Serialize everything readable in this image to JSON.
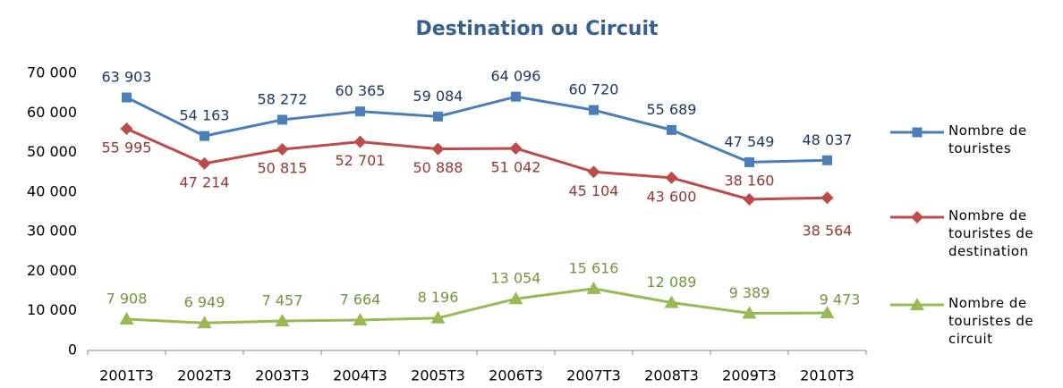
{
  "chart_data": {
    "type": "line",
    "title": "Destination ou Circuit",
    "categories": [
      "2001T3",
      "2002T3",
      "2003T3",
      "2004T3",
      "2005T3",
      "2006T3",
      "2007T3",
      "2008T3",
      "2009T3",
      "2010T3"
    ],
    "ylim": [
      0,
      70000
    ],
    "yticks": [
      0,
      {
        "value": 10000,
        "label": "10 000"
      },
      {
        "value": 20000,
        "label": "20 000"
      },
      {
        "value": 30000,
        "label": "30 000"
      },
      {
        "value": 40000,
        "label": "40 000"
      },
      {
        "value": 50000,
        "label": "50 000"
      },
      {
        "value": 60000,
        "label": "60 000"
      },
      {
        "value": 70000,
        "label": "70 000"
      }
    ],
    "grid": false,
    "legend": "right",
    "series": [
      {
        "name": "Nombre de touristes",
        "color": "#4a7ebb",
        "marker": "square",
        "values": [
          63903,
          54163,
          58272,
          60365,
          59084,
          64096,
          60720,
          55689,
          47549,
          48037
        ],
        "value_labels": [
          "63 903",
          "54 163",
          "58 272",
          "60 365",
          "59 084",
          "64 096",
          "60 720",
          "55 689",
          "47 549",
          "48 037"
        ]
      },
      {
        "name": "Nombre de touristes de destination",
        "color": "#be4b48",
        "marker": "diamond",
        "values": [
          55995,
          47214,
          50815,
          52701,
          50888,
          51042,
          45104,
          43600,
          38160,
          38564
        ],
        "value_labels": [
          "55 995",
          "47 214",
          "50 815",
          "52 701",
          "50 888",
          "51 042",
          "45 104",
          "43 600",
          "38 160",
          "38 564"
        ]
      },
      {
        "name": "Nombre de touristes de circuit",
        "color": "#98b954",
        "marker": "triangle",
        "values": [
          7908,
          6949,
          7457,
          7664,
          8196,
          13054,
          15616,
          12089,
          9389,
          9473
        ],
        "value_labels": [
          "7 908",
          "6 949",
          "7 457",
          "7 664",
          "8 196",
          "13 054",
          "15 616",
          "12 089",
          "9 389",
          "9 473"
        ]
      }
    ]
  }
}
